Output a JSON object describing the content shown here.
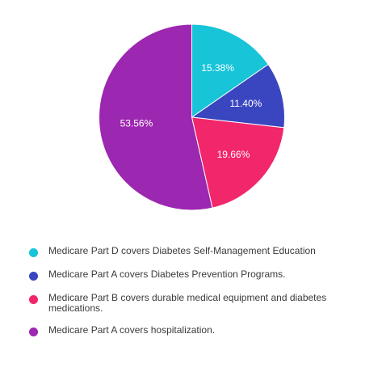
{
  "chart_data": {
    "type": "pie",
    "title": "",
    "slices": [
      {
        "label": "Medicare Part D covers Diabetes Self-Management Education",
        "value": 15.38,
        "value_label": "15.38%",
        "color": "#17c4d8"
      },
      {
        "label": "Medicare Part A covers Diabetes Prevention Programs.",
        "value": 11.4,
        "value_label": "11.40%",
        "color": "#3a46c0"
      },
      {
        "label": "Medicare Part B covers durable medical equipment and diabetes medications.",
        "value": 19.66,
        "value_label": "19.66%",
        "color": "#f2266a"
      },
      {
        "label": "Medicare Part A covers hospitalization.",
        "value": 53.56,
        "value_label": "53.56%",
        "color": "#9c27b0"
      }
    ],
    "legend_placement": "bottom"
  }
}
